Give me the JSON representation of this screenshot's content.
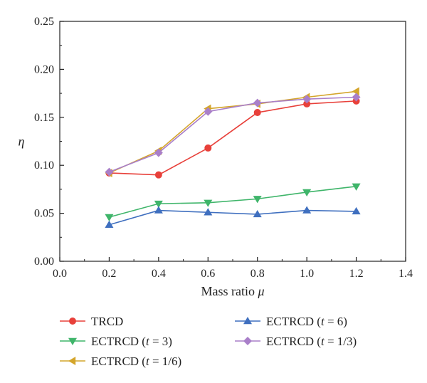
{
  "chart_data": {
    "type": "line",
    "title": "",
    "xlabel": "Mass ratio",
    "xlabel_symbol": "μ",
    "ylabel": "η",
    "xlim": [
      0.0,
      1.4
    ],
    "ylim": [
      0.0,
      0.25
    ],
    "xticks": [
      "0.0",
      "0.2",
      "0.4",
      "0.6",
      "0.8",
      "1.0",
      "1.2",
      "1.4"
    ],
    "yticks": [
      "0.00",
      "0.05",
      "0.10",
      "0.15",
      "0.20",
      "0.25"
    ],
    "x": [
      0.2,
      0.4,
      0.6,
      0.8,
      1.0,
      1.2
    ],
    "grid": false,
    "legend_position": "bottom",
    "series": [
      {
        "name": "TRCD",
        "name_main": "TRCD",
        "name_t": "",
        "color": "#e8403a",
        "marker": "circle",
        "values": [
          0.092,
          0.09,
          0.118,
          0.155,
          0.164,
          0.167
        ]
      },
      {
        "name": "ECTRCD (t = 3)",
        "name_main": "ECTRCD (",
        "name_t": "t",
        "name_rest": " = 3)",
        "color": "#3fb56a",
        "marker": "triangle-down",
        "values": [
          0.046,
          0.06,
          0.061,
          0.065,
          0.072,
          0.078
        ]
      },
      {
        "name": "ECTRCD (t = 1/6)",
        "name_main": "ECTRCD (",
        "name_t": "t",
        "name_rest": " = 1/6)",
        "color": "#d4a52b",
        "marker": "triangle-left",
        "values": [
          0.092,
          0.115,
          0.159,
          0.164,
          0.171,
          0.177
        ]
      },
      {
        "name": "ECTRCD (t = 6)",
        "name_main": "ECTRCD (",
        "name_t": "t",
        "name_rest": " = 6)",
        "color": "#3f6fbf",
        "marker": "triangle-up",
        "values": [
          0.038,
          0.053,
          0.051,
          0.049,
          0.053,
          0.052
        ]
      },
      {
        "name": "ECTRCD (t = 1/3)",
        "name_main": "ECTRCD (",
        "name_t": "t",
        "name_rest": " = 1/3)",
        "color": "#a97fc9",
        "marker": "diamond",
        "values": [
          0.093,
          0.113,
          0.156,
          0.165,
          0.169,
          0.171
        ]
      }
    ]
  }
}
